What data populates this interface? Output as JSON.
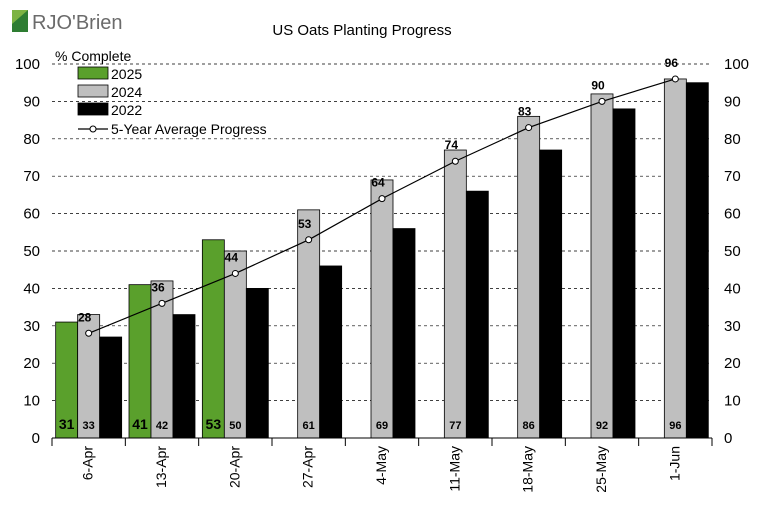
{
  "logo": {
    "text": "RJO'Brien",
    "color": "#2e7d32"
  },
  "chart_data": {
    "type": "bar",
    "title": "US Oats Planting Progress",
    "ylabel": "% Complete",
    "ylim": [
      0,
      100
    ],
    "yticks": [
      0,
      10,
      20,
      30,
      40,
      50,
      60,
      70,
      80,
      90,
      100
    ],
    "grid": "horizontal-dashed",
    "legend_position": "top-left",
    "categories": [
      "6-Apr",
      "13-Apr",
      "20-Apr",
      "27-Apr",
      "4-May",
      "11-May",
      "18-May",
      "25-May",
      "1-Jun"
    ],
    "series": [
      {
        "name": "2025",
        "color": "#5aa02c",
        "values": [
          31,
          41,
          53,
          null,
          null,
          null,
          null,
          null,
          null
        ]
      },
      {
        "name": "2024",
        "color": "#bfbfbf",
        "values": [
          33,
          42,
          50,
          61,
          69,
          77,
          86,
          92,
          96
        ]
      },
      {
        "name": "2022",
        "color": "#000000",
        "values": [
          27,
          33,
          40,
          46,
          56,
          66,
          77,
          88,
          95
        ]
      }
    ],
    "average": {
      "name": "5-Year Average Progress",
      "values": [
        28,
        36,
        44,
        53,
        64,
        74,
        83,
        90,
        96
      ]
    }
  }
}
